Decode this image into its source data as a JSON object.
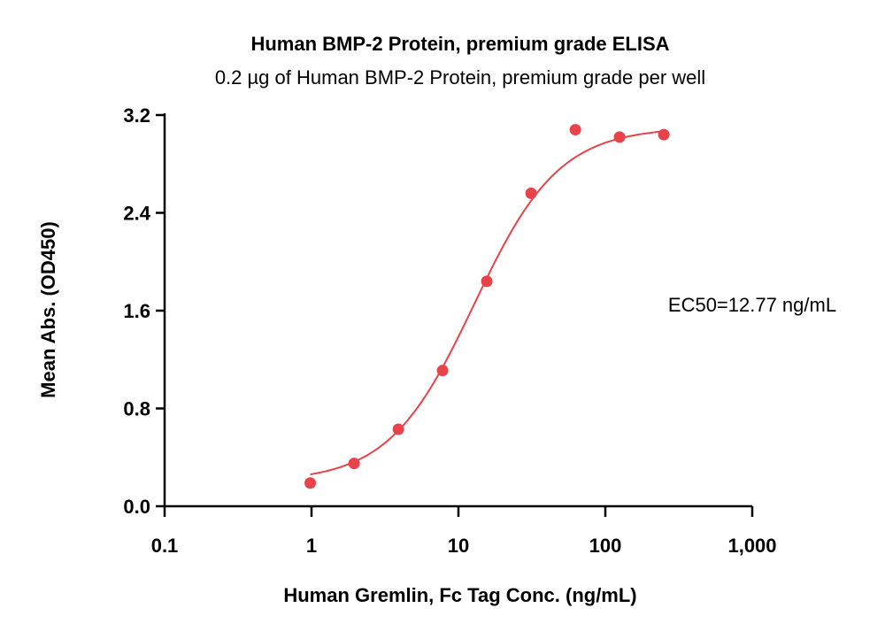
{
  "chart_data": {
    "type": "scatter",
    "title": "Human BMP-2 Protein, premium grade ELISA",
    "subtitle": "0.2 µg of Human BMP-2 Protein, premium grade per well",
    "xlabel": "Human Gremlin, Fc Tag Conc. (ng/mL)",
    "ylabel": "Mean Abs. (OD450)",
    "x_scale": "log",
    "xlim": [
      0.1,
      1000
    ],
    "ylim": [
      0,
      3.2
    ],
    "x_ticks": [
      0.1,
      1,
      10,
      100,
      1000
    ],
    "x_tick_labels": [
      "0.1",
      "1",
      "10",
      "100",
      "1,000"
    ],
    "y_ticks": [
      0,
      0.8,
      1.6,
      2.4,
      3.2
    ],
    "y_tick_labels": [
      "0.0",
      "0.8",
      "1.6",
      "2.4",
      "3.2"
    ],
    "grid": false,
    "series": [
      {
        "color": "#e8424a",
        "x": [
          0.98,
          1.95,
          3.9,
          7.8,
          15.6,
          31.25,
          62.5,
          125,
          250
        ],
        "y": [
          0.19,
          0.35,
          0.63,
          1.11,
          1.84,
          2.56,
          3.08,
          3.02,
          3.04
        ]
      }
    ],
    "fit": {
      "type": "4PL",
      "color": "#e8424a",
      "bottom": 0.2,
      "top": 3.1,
      "ec50": 12.77,
      "hill": 1.5,
      "x_range": [
        0.98,
        250
      ]
    },
    "annotation": "EC50=12.77 ng/mL"
  }
}
